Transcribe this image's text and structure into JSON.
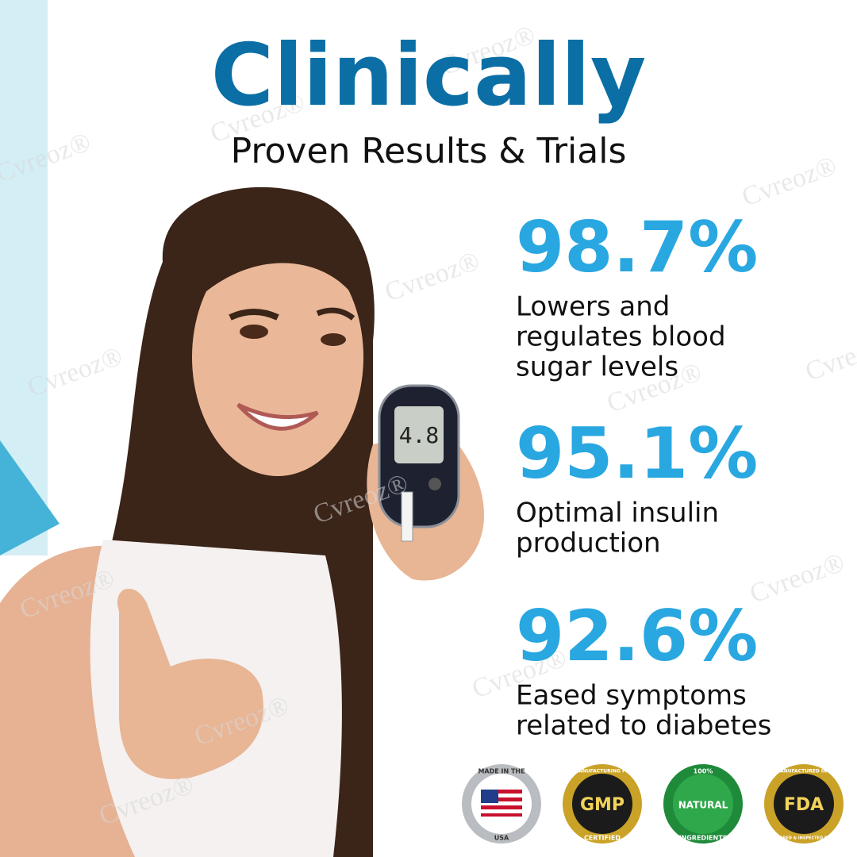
{
  "header": {
    "title": "Clinically",
    "subtitle": "Proven Results & Trials"
  },
  "stats": [
    {
      "value": "98.7%",
      "lines": [
        "Lowers and",
        "regulates blood",
        "sugar levels"
      ]
    },
    {
      "value": "95.1%",
      "lines": [
        "Optimal insulin",
        "production"
      ]
    },
    {
      "value": "92.6%",
      "lines": [
        "Eased symptoms",
        "related to diabetes"
      ]
    }
  ],
  "meter_reading": "4.8",
  "watermark": "Cvreoz®",
  "badges": [
    {
      "top": "MADE IN THE",
      "bottom": "USA"
    },
    {
      "top": "GOOD MANUFACTURING PRACTICE",
      "center": "GMP",
      "bottom": "CERTIFIED"
    },
    {
      "top": "100%",
      "center": "NATURAL",
      "bottom": "INGREDIENTS"
    },
    {
      "top": "MANUFACTURED IN A",
      "center": "FDA",
      "bottom": "REGISTERED & INSPECTED FACILITY"
    }
  ]
}
